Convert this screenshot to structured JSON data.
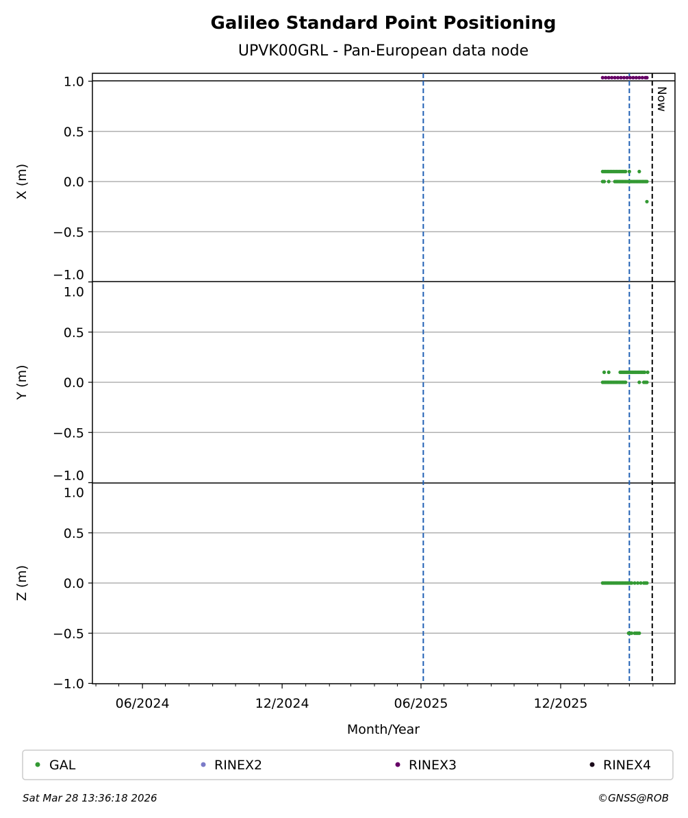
{
  "chart_data": {
    "type": "scatter",
    "title": "Galileo Standard Point Positioning",
    "subtitle": "UPVK00GRL - Pan-European data node",
    "xlabel": "Month/Year",
    "xlim": [
      "2024-03-28",
      "2026-04-30"
    ],
    "x_ticks": [
      {
        "date": "2024-06-01",
        "label": "06/2024"
      },
      {
        "date": "2024-12-01",
        "label": "12/2024"
      },
      {
        "date": "2025-06-01",
        "label": "06/2025"
      },
      {
        "date": "2025-12-01",
        "label": "12/2025"
      }
    ],
    "y_ticks": [
      "1.0",
      "0.5",
      "0.0",
      "−0.5",
      "−1.0"
    ],
    "grid": true,
    "panels": [
      {
        "ylabel": "X (m)",
        "ylim": [
          -1,
          1
        ],
        "series": [
          {
            "name": "GAL",
            "points": [
              [
                "2026-01-25",
                0.1
              ],
              [
                "2026-01-27",
                0.1
              ],
              [
                "2026-01-29",
                0.1
              ],
              [
                "2026-01-31",
                0.1
              ],
              [
                "2026-02-02",
                0.1
              ],
              [
                "2026-02-04",
                0.1
              ],
              [
                "2026-02-06",
                0.1
              ],
              [
                "2026-02-08",
                0.1
              ],
              [
                "2026-02-10",
                0.1
              ],
              [
                "2026-02-12",
                0.1
              ],
              [
                "2026-02-14",
                0.1
              ],
              [
                "2026-02-16",
                0.1
              ],
              [
                "2026-02-18",
                0.1
              ],
              [
                "2026-02-20",
                0.1
              ],
              [
                "2026-02-22",
                0.1
              ],
              [
                "2026-02-24",
                0.1
              ],
              [
                "2026-03-01",
                0.1
              ],
              [
                "2026-03-14",
                0.1
              ],
              [
                "2026-01-25",
                0
              ],
              [
                "2026-01-27",
                0
              ],
              [
                "2026-02-02",
                0
              ],
              [
                "2026-02-10",
                0
              ],
              [
                "2026-02-12",
                0
              ],
              [
                "2026-02-14",
                0
              ],
              [
                "2026-02-16",
                0
              ],
              [
                "2026-02-18",
                0
              ],
              [
                "2026-02-20",
                0
              ],
              [
                "2026-02-22",
                0
              ],
              [
                "2026-02-24",
                0
              ],
              [
                "2026-02-26",
                0
              ],
              [
                "2026-02-28",
                0
              ],
              [
                "2026-03-02",
                0
              ],
              [
                "2026-03-04",
                0
              ],
              [
                "2026-03-06",
                0
              ],
              [
                "2026-03-08",
                0
              ],
              [
                "2026-03-10",
                0
              ],
              [
                "2026-03-12",
                0
              ],
              [
                "2026-03-14",
                0
              ],
              [
                "2026-03-16",
                0
              ],
              [
                "2026-03-18",
                0
              ],
              [
                "2026-03-20",
                0
              ],
              [
                "2026-03-22",
                0
              ],
              [
                "2026-03-24",
                0
              ],
              [
                "2026-03-24",
                -0.2
              ]
            ]
          },
          {
            "name": "RINEX3",
            "points": [
              [
                "2026-01-25",
                1.035
              ],
              [
                "2026-01-29",
                1.035
              ],
              [
                "2026-02-02",
                1.035
              ],
              [
                "2026-02-06",
                1.035
              ],
              [
                "2026-02-10",
                1.035
              ],
              [
                "2026-02-14",
                1.035
              ],
              [
                "2026-02-18",
                1.035
              ],
              [
                "2026-02-22",
                1.035
              ],
              [
                "2026-02-26",
                1.035
              ],
              [
                "2026-03-02",
                1.035
              ],
              [
                "2026-03-06",
                1.035
              ],
              [
                "2026-03-10",
                1.035
              ],
              [
                "2026-03-14",
                1.035
              ],
              [
                "2026-03-18",
                1.035
              ],
              [
                "2026-03-22",
                1.035
              ],
              [
                "2026-03-24",
                1.035
              ]
            ]
          }
        ]
      },
      {
        "ylabel": "Y (m)",
        "ylim": [
          -1,
          1
        ],
        "series": [
          {
            "name": "GAL",
            "points": [
              [
                "2026-01-27",
                0.1
              ],
              [
                "2026-02-02",
                0.1
              ],
              [
                "2026-02-17",
                0.1
              ],
              [
                "2026-02-19",
                0.1
              ],
              [
                "2026-02-21",
                0.1
              ],
              [
                "2026-02-23",
                0.1
              ],
              [
                "2026-02-25",
                0.1
              ],
              [
                "2026-02-27",
                0.1
              ],
              [
                "2026-03-01",
                0.1
              ],
              [
                "2026-03-03",
                0.1
              ],
              [
                "2026-03-05",
                0.1
              ],
              [
                "2026-03-07",
                0.1
              ],
              [
                "2026-03-09",
                0.1
              ],
              [
                "2026-03-11",
                0.1
              ],
              [
                "2026-03-13",
                0.1
              ],
              [
                "2026-03-15",
                0.1
              ],
              [
                "2026-03-17",
                0.1
              ],
              [
                "2026-03-19",
                0.1
              ],
              [
                "2026-03-21",
                0.1
              ],
              [
                "2026-03-25",
                0.1
              ],
              [
                "2026-01-25",
                0
              ],
              [
                "2026-01-27",
                0
              ],
              [
                "2026-01-29",
                0
              ],
              [
                "2026-01-31",
                0
              ],
              [
                "2026-02-02",
                0
              ],
              [
                "2026-02-04",
                0
              ],
              [
                "2026-02-06",
                0
              ],
              [
                "2026-02-08",
                0
              ],
              [
                "2026-02-10",
                0
              ],
              [
                "2026-02-12",
                0
              ],
              [
                "2026-02-14",
                0
              ],
              [
                "2026-02-16",
                0
              ],
              [
                "2026-02-18",
                0
              ],
              [
                "2026-02-20",
                0
              ],
              [
                "2026-02-22",
                0
              ],
              [
                "2026-02-24",
                0
              ],
              [
                "2026-03-14",
                0
              ],
              [
                "2026-03-20",
                0
              ],
              [
                "2026-03-22",
                0
              ],
              [
                "2026-03-24",
                0
              ]
            ]
          }
        ]
      },
      {
        "ylabel": "Z (m)",
        "ylim": [
          -1,
          1
        ],
        "series": [
          {
            "name": "GAL",
            "points": [
              [
                "2026-01-25",
                0
              ],
              [
                "2026-01-27",
                0
              ],
              [
                "2026-01-29",
                0
              ],
              [
                "2026-01-31",
                0
              ],
              [
                "2026-02-02",
                0
              ],
              [
                "2026-02-04",
                0
              ],
              [
                "2026-02-06",
                0
              ],
              [
                "2026-02-08",
                0
              ],
              [
                "2026-02-10",
                0
              ],
              [
                "2026-02-12",
                0
              ],
              [
                "2026-02-14",
                0
              ],
              [
                "2026-02-16",
                0
              ],
              [
                "2026-02-18",
                0
              ],
              [
                "2026-02-20",
                0
              ],
              [
                "2026-02-22",
                0
              ],
              [
                "2026-02-24",
                0
              ],
              [
                "2026-02-26",
                0
              ],
              [
                "2026-02-28",
                0
              ],
              [
                "2026-03-02",
                0
              ],
              [
                "2026-03-04",
                0
              ],
              [
                "2026-03-08",
                0
              ],
              [
                "2026-03-12",
                0
              ],
              [
                "2026-03-16",
                0
              ],
              [
                "2026-03-20",
                0
              ],
              [
                "2026-03-22",
                0
              ],
              [
                "2026-03-24",
                0
              ],
              [
                "2026-02-28",
                -0.5
              ],
              [
                "2026-03-02",
                -0.5
              ],
              [
                "2026-03-04",
                -0.5
              ],
              [
                "2026-03-08",
                -0.5
              ],
              [
                "2026-03-10",
                -0.5
              ],
              [
                "2026-03-12",
                -0.5
              ],
              [
                "2026-03-14",
                -0.5
              ]
            ]
          }
        ]
      }
    ],
    "vertical_lines": [
      {
        "date": "2025-06-04",
        "color": "#1f5fb4",
        "style": "dashed"
      },
      {
        "date": "2026-03-01",
        "color": "#1f5fb4",
        "style": "dashed"
      },
      {
        "date": "2026-03-31",
        "color": "#000000",
        "style": "dashed",
        "label": "Now"
      }
    ],
    "legend": {
      "placement": "bottom",
      "entries": [
        {
          "name": "GAL",
          "color": "#339933"
        },
        {
          "name": "RINEX2",
          "color": "#7b7bc8"
        },
        {
          "name": "RINEX3",
          "color": "#660066"
        },
        {
          "name": "RINEX4",
          "color": "#1a0a1a"
        }
      ]
    }
  },
  "footer": {
    "timestamp": "Sat Mar 28 13:36:18 2026",
    "credit": "©GNSS@ROB"
  }
}
